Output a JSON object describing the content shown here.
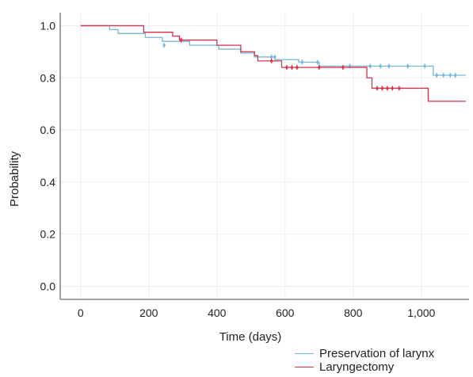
{
  "chart_data": {
    "type": "line",
    "subtype": "kaplan-meier",
    "title": "",
    "xlabel": "Time (days)",
    "ylabel": "Probability",
    "xlim": [
      -60,
      1140
    ],
    "ylim": [
      -0.05,
      1.05
    ],
    "x_ticks": [
      0,
      200,
      400,
      600,
      800,
      1000
    ],
    "x_tick_labels": [
      "0",
      "200",
      "400",
      "600",
      "800",
      "1,000"
    ],
    "y_ticks": [
      0.0,
      0.2,
      0.4,
      0.6,
      0.8,
      1.0
    ],
    "y_tick_labels": [
      "0.0",
      "0.2",
      "0.4",
      "0.6",
      "0.8",
      "1.0"
    ],
    "grid": true,
    "legend_position": "bottom-right",
    "series": [
      {
        "name": "Preservation of larynx",
        "color": "#74b6d6",
        "steps": [
          [
            0,
            1.0
          ],
          [
            85,
            0.985
          ],
          [
            110,
            0.97
          ],
          [
            190,
            0.955
          ],
          [
            240,
            0.94
          ],
          [
            320,
            0.925
          ],
          [
            405,
            0.91
          ],
          [
            470,
            0.895
          ],
          [
            510,
            0.88
          ],
          [
            570,
            0.87
          ],
          [
            640,
            0.86
          ],
          [
            700,
            0.845
          ],
          [
            1035,
            0.81
          ],
          [
            1130,
            0.81
          ]
        ],
        "censored": [
          [
            245,
            0.925
          ],
          [
            560,
            0.88
          ],
          [
            570,
            0.88
          ],
          [
            650,
            0.86
          ],
          [
            695,
            0.86
          ],
          [
            790,
            0.845
          ],
          [
            850,
            0.845
          ],
          [
            880,
            0.845
          ],
          [
            905,
            0.845
          ],
          [
            960,
            0.845
          ],
          [
            1010,
            0.845
          ],
          [
            1045,
            0.81
          ],
          [
            1065,
            0.81
          ],
          [
            1085,
            0.81
          ],
          [
            1100,
            0.81
          ]
        ]
      },
      {
        "name": "Laryngectomy",
        "color": "#d6304a",
        "steps": [
          [
            0,
            1.0
          ],
          [
            185,
            0.975
          ],
          [
            270,
            0.96
          ],
          [
            290,
            0.945
          ],
          [
            400,
            0.925
          ],
          [
            470,
            0.9
          ],
          [
            510,
            0.885
          ],
          [
            520,
            0.865
          ],
          [
            590,
            0.84
          ],
          [
            840,
            0.8
          ],
          [
            855,
            0.76
          ],
          [
            1020,
            0.71
          ],
          [
            1130,
            0.71
          ]
        ],
        "censored": [
          [
            295,
            0.945
          ],
          [
            560,
            0.865
          ],
          [
            605,
            0.84
          ],
          [
            620,
            0.84
          ],
          [
            635,
            0.84
          ],
          [
            700,
            0.84
          ],
          [
            770,
            0.84
          ],
          [
            870,
            0.76
          ],
          [
            885,
            0.76
          ],
          [
            900,
            0.76
          ],
          [
            915,
            0.76
          ],
          [
            935,
            0.76
          ]
        ]
      }
    ]
  }
}
